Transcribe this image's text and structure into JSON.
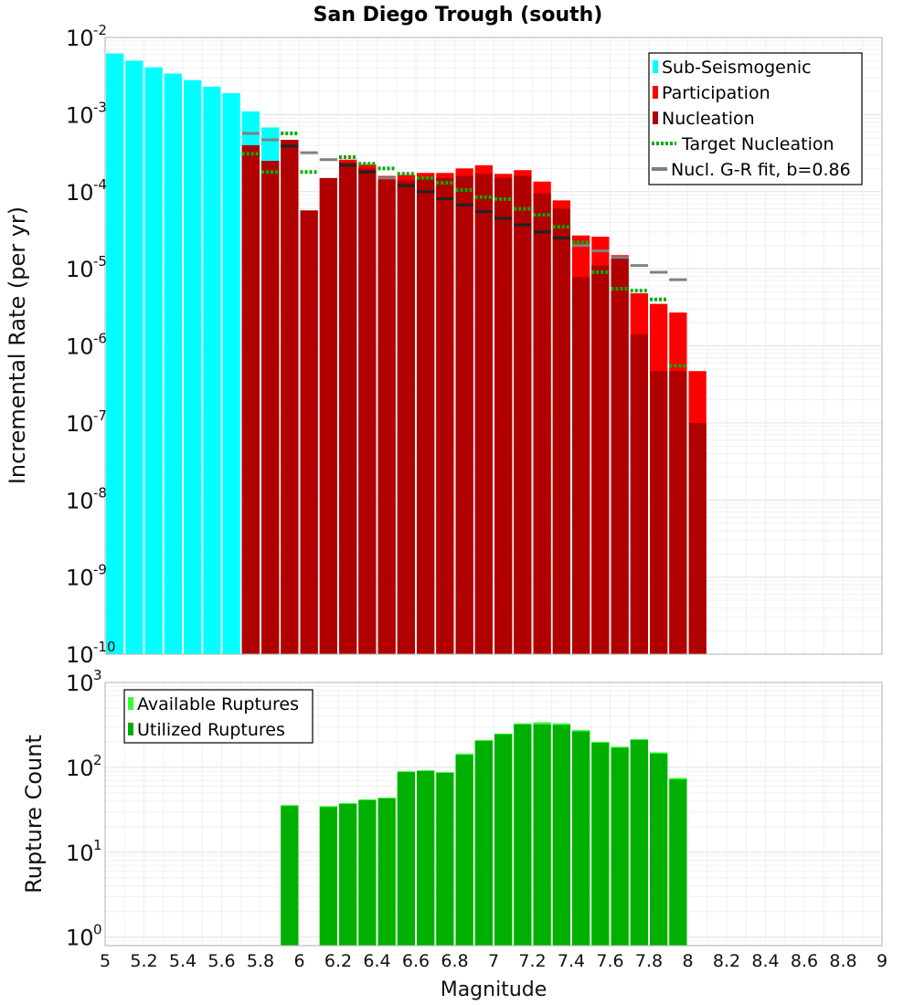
{
  "chart_data": [
    {
      "type": "bar",
      "title": "San Diego Trough (south)",
      "xlabel": "Magnitude",
      "ylabel": "Incremental Rate (per yr)",
      "xlim": [
        5,
        9
      ],
      "ylim_log10": [
        -10,
        -2
      ],
      "yscale": "log",
      "bin_width": 0.1,
      "y_tick_labels": [
        {
          "base": "10",
          "exp": "-10"
        },
        {
          "base": "10",
          "exp": "-9"
        },
        {
          "base": "10",
          "exp": "-8"
        },
        {
          "base": "10",
          "exp": "-7"
        },
        {
          "base": "10",
          "exp": "-6"
        },
        {
          "base": "10",
          "exp": "-5"
        },
        {
          "base": "10",
          "exp": "-4"
        },
        {
          "base": "10",
          "exp": "-3"
        },
        {
          "base": "10",
          "exp": "-2"
        }
      ],
      "colors": {
        "sub": "#00ffff",
        "participation": "#ff0000",
        "nucleation": "#b00000",
        "target": "#00b000",
        "gr": "#808080"
      },
      "legend": {
        "position": "top-right",
        "items": [
          {
            "label": "Sub-Seismogenic",
            "symbol": "bar",
            "color": "#00ffff"
          },
          {
            "label": "Participation",
            "symbol": "bar",
            "color": "#ff0000"
          },
          {
            "label": "Nucleation",
            "symbol": "bar",
            "color": "#b00000"
          },
          {
            "label": "Target Nucleation",
            "symbol": "dotted",
            "color": "#00b000"
          },
          {
            "label": "Nucl. G-R fit, b=0.86",
            "symbol": "line",
            "color": "#808080"
          }
        ]
      },
      "sub_seismogenic": {
        "x": [
          5.05,
          5.15,
          5.25,
          5.35,
          5.45,
          5.55,
          5.65,
          5.75,
          5.85
        ],
        "values": [
          0.0062,
          0.005,
          0.0041,
          0.0034,
          0.0028,
          0.0023,
          0.0019,
          0.0011,
          0.00068
        ]
      },
      "participation": {
        "x": [
          5.75,
          5.85,
          5.95,
          6.05,
          6.15,
          6.25,
          6.35,
          6.45,
          6.55,
          6.65,
          6.75,
          6.85,
          6.95,
          7.05,
          7.15,
          7.25,
          7.35,
          7.45,
          7.55,
          7.65,
          7.75,
          7.85,
          7.95,
          8.05
        ],
        "values": [
          0.0004,
          0.00025,
          0.00047,
          5.7e-05,
          0.00015,
          0.00026,
          0.000225,
          0.00016,
          0.000165,
          0.000175,
          0.000175,
          0.0002,
          0.00022,
          0.00017,
          0.00019,
          0.000135,
          7.7e-05,
          2.7e-05,
          2.6e-05,
          1.5e-05,
          4.8e-06,
          3.5e-06,
          2.7e-06,
          4.7e-07
        ]
      },
      "nucleation": {
        "x": [
          5.75,
          5.85,
          5.95,
          6.05,
          6.15,
          6.25,
          6.35,
          6.45,
          6.55,
          6.65,
          6.75,
          6.85,
          6.95,
          7.05,
          7.15,
          7.25,
          7.35,
          7.45,
          7.55,
          7.65,
          7.75,
          7.85,
          7.95,
          8.05
        ],
        "values": [
          0.0004,
          0.00025,
          0.00047,
          5.7e-05,
          0.00015,
          0.00024,
          0.0002,
          0.00015,
          0.00014,
          0.00015,
          0.00015,
          0.00016,
          0.00017,
          0.00015,
          0.00016,
          9.5e-05,
          6e-05,
          7.8e-06,
          1.1e-05,
          1.4e-05,
          1.4e-06,
          4.7e-07,
          4.7e-07,
          1e-07
        ]
      },
      "target_nucleation": {
        "x": [
          5.75,
          5.85,
          5.95,
          6.05,
          6.15,
          6.25,
          6.35,
          6.45,
          6.55,
          6.65,
          6.75,
          6.85,
          6.95,
          7.05,
          7.15,
          7.25,
          7.35,
          7.45,
          7.55,
          7.65,
          7.75,
          7.85,
          7.95,
          8.05
        ],
        "values": [
          0.00031,
          0.00018,
          0.00057,
          0.00018,
          null,
          0.00028,
          0.00023,
          0.0002,
          0.00017,
          0.00015,
          0.00013,
          0.000105,
          8.5e-05,
          8e-05,
          6e-05,
          5e-05,
          3.5e-05,
          2.2e-05,
          9e-06,
          5.5e-06,
          5.2e-06,
          4e-06,
          5.5e-07,
          null
        ]
      },
      "gr_fit": {
        "x": [
          5.75,
          5.85,
          5.95,
          6.05,
          6.15,
          6.25,
          6.35,
          6.45,
          6.55,
          6.65,
          6.75,
          6.85,
          6.95,
          7.05,
          7.15,
          7.25,
          7.35,
          7.45,
          7.55,
          7.65,
          7.75,
          7.85,
          7.95
        ],
        "values": [
          0.00057,
          0.00047,
          0.00039,
          0.00032,
          0.00026,
          0.00022,
          0.00018,
          0.00015,
          0.00012,
          0.0001,
          8.1e-05,
          6.7e-05,
          5.5e-05,
          4.5e-05,
          3.7e-05,
          3e-05,
          2.5e-05,
          2e-05,
          1.7e-05,
          1.4e-05,
          1.1e-05,
          9e-06,
          7.2e-06
        ]
      }
    },
    {
      "type": "bar",
      "xlabel": "Magnitude",
      "ylabel": "Rupture Count",
      "xlim": [
        5,
        9
      ],
      "ylim_log10": [
        -0.1,
        3
      ],
      "yscale": "log",
      "bin_width": 0.1,
      "x_tick_labels": [
        "5",
        "5.2",
        "5.4",
        "5.6",
        "5.8",
        "6",
        "6.2",
        "6.4",
        "6.6",
        "6.8",
        "7",
        "7.2",
        "7.4",
        "7.6",
        "7.8",
        "8",
        "8.2",
        "8.4",
        "8.6",
        "8.8",
        "9"
      ],
      "y_tick_labels": [
        {
          "base": "10",
          "exp": "0"
        },
        {
          "base": "10",
          "exp": "1"
        },
        {
          "base": "10",
          "exp": "2"
        },
        {
          "base": "10",
          "exp": "3"
        }
      ],
      "colors": {
        "available": "#33ff33",
        "utilized": "#00b000"
      },
      "legend": {
        "position": "top-left",
        "items": [
          {
            "label": "Available Ruptures",
            "color": "#33ff33"
          },
          {
            "label": "Utilized Ruptures",
            "color": "#00b000"
          }
        ]
      },
      "available": {
        "x": [
          5.95,
          6.15,
          6.25,
          6.35,
          6.45,
          6.55,
          6.65,
          6.75,
          6.85,
          6.95,
          7.05,
          7.15,
          7.25,
          7.35,
          7.45,
          7.55,
          7.65,
          7.75,
          7.85,
          7.95
        ],
        "values": [
          36,
          35,
          38,
          42,
          44,
          90,
          92,
          88,
          145,
          210,
          250,
          330,
          340,
          330,
          275,
          200,
          175,
          215,
          150,
          75
        ]
      },
      "utilized": {
        "x": [
          5.95,
          6.15,
          6.25,
          6.35,
          6.45,
          6.55,
          6.65,
          6.75,
          6.85,
          6.95,
          7.05,
          7.15,
          7.25,
          7.35,
          7.45,
          7.55,
          7.65,
          7.75,
          7.85,
          7.95
        ],
        "values": [
          35,
          34,
          37,
          41,
          43,
          88,
          91,
          86,
          140,
          205,
          245,
          320,
          320,
          315,
          265,
          195,
          170,
          210,
          145,
          72
        ]
      }
    }
  ]
}
